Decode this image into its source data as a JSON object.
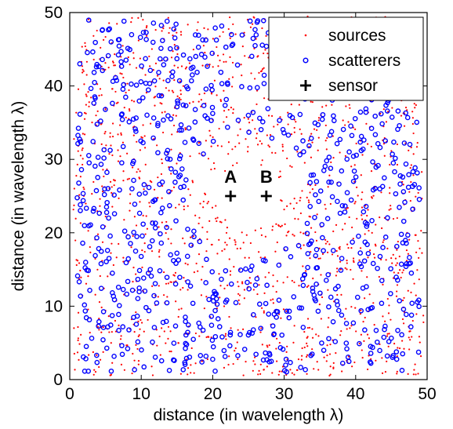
{
  "chart_data": {
    "type": "scatter",
    "title": "",
    "xlabel": "distance (in wavelength λ)",
    "ylabel": "distance (in wavelength λ)",
    "xlim": [
      0,
      50
    ],
    "ylim": [
      0,
      50
    ],
    "xticks": [
      0,
      10,
      20,
      30,
      40,
      50
    ],
    "yticks": [
      0,
      10,
      20,
      30,
      40,
      50
    ],
    "grid": false,
    "legend_position": "top-right",
    "cleared_region": {
      "center": [
        25,
        25
      ],
      "radius_scatterers": 8.5,
      "radius_sources": 4.5
    },
    "series": [
      {
        "name": "sources",
        "marker": "dot",
        "color": "#ff0000",
        "count": 1500,
        "distribution": "uniform random",
        "extent": [
          0.5,
          49.5
        ]
      },
      {
        "name": "scatterers",
        "marker": "circle",
        "color": "#0000ff",
        "count": 860,
        "distribution": "uniform random",
        "extent": [
          1,
          49
        ]
      },
      {
        "name": "sensor",
        "marker": "plus",
        "color": "#000000",
        "points": [
          {
            "label": "A",
            "x": 22.5,
            "y": 25
          },
          {
            "label": "B",
            "x": 27.5,
            "y": 25
          }
        ]
      }
    ]
  }
}
